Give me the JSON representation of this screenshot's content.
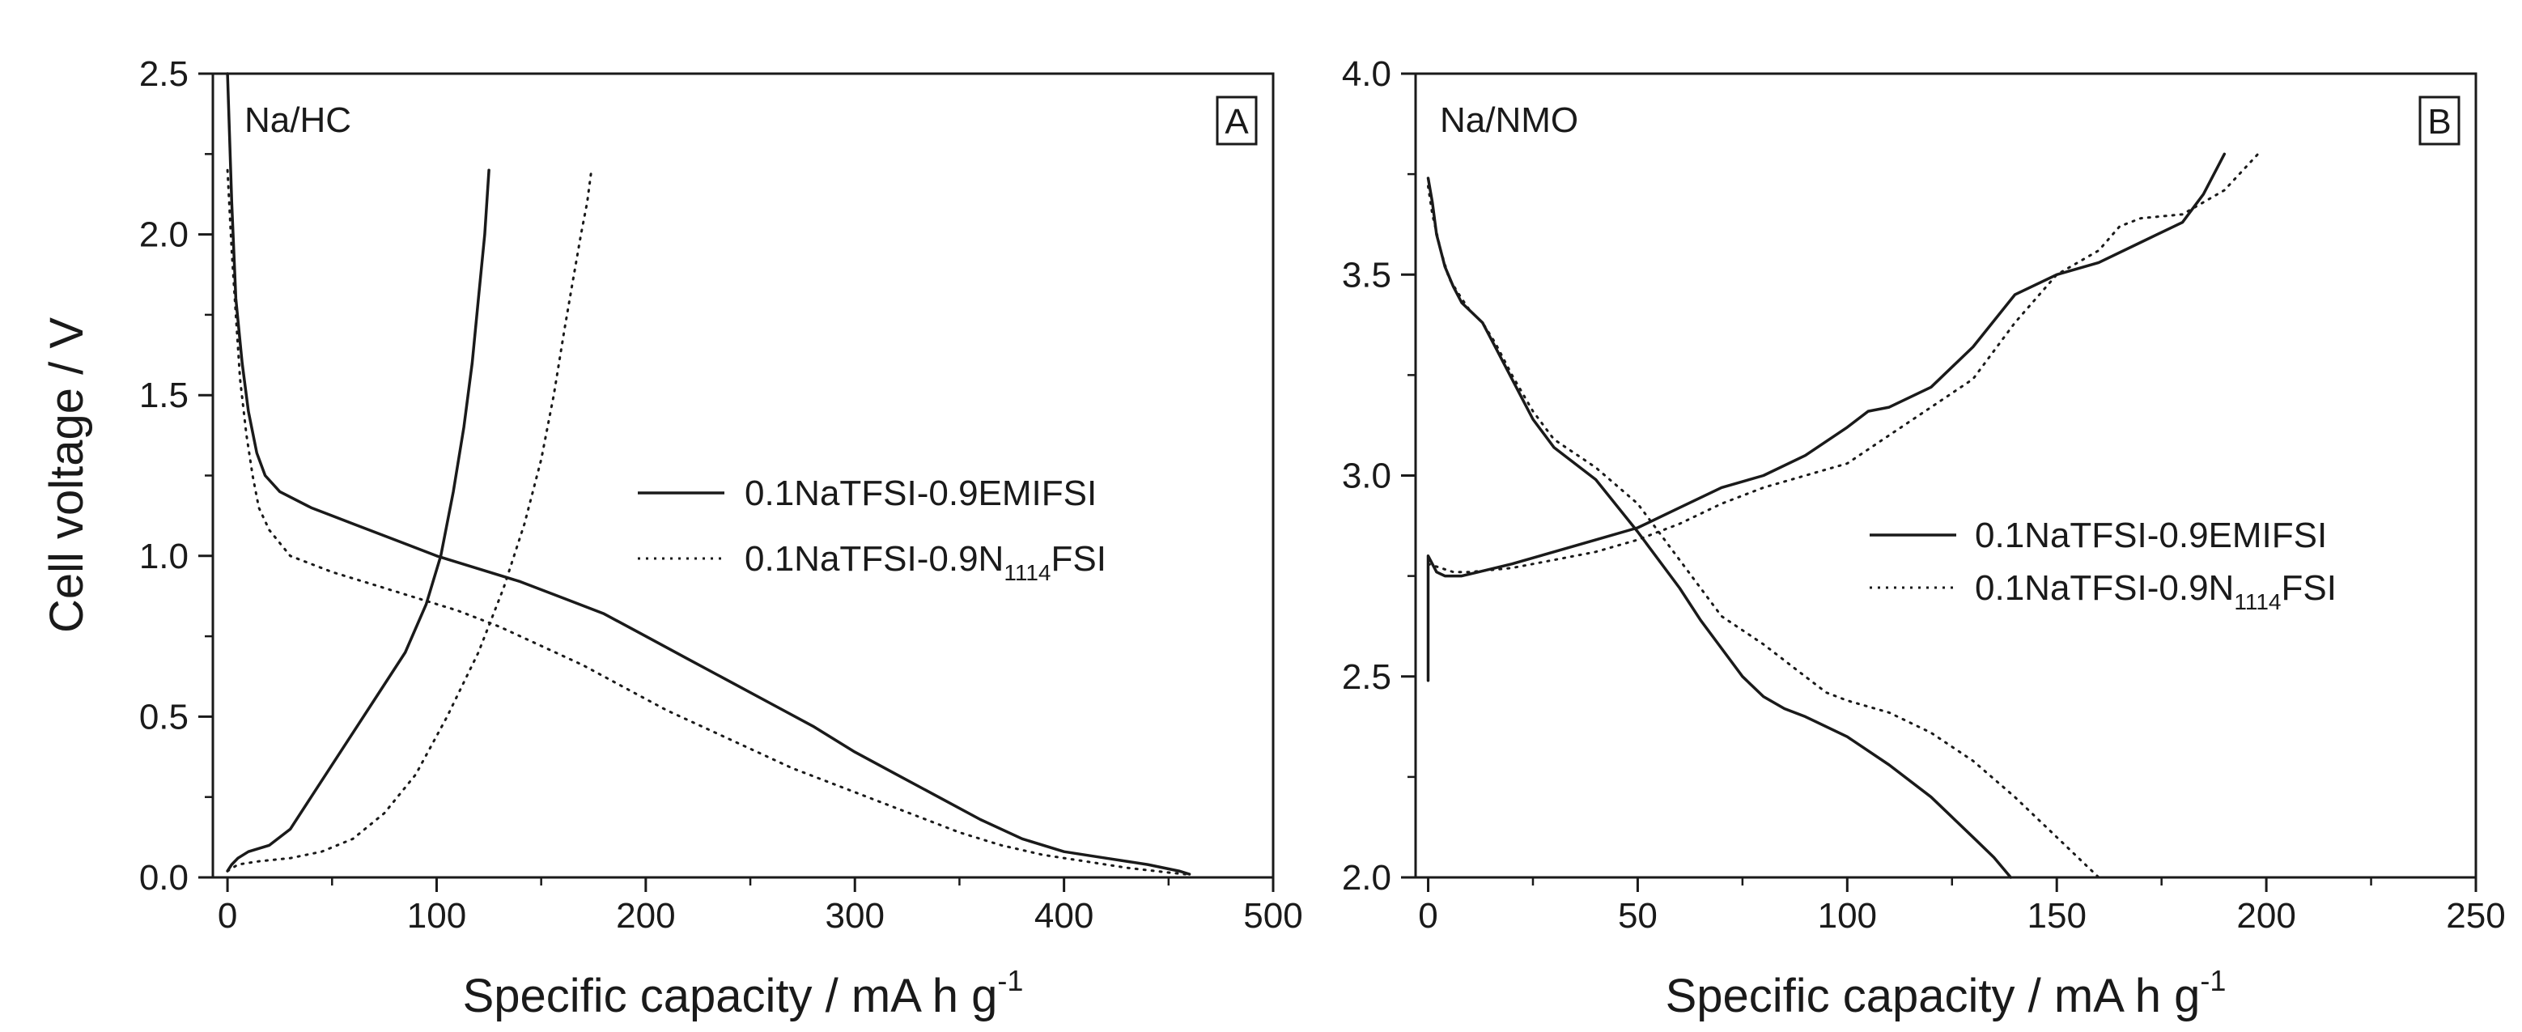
{
  "chart_data": [
    {
      "type": "line",
      "panel_label": "A",
      "annotation": "Na/HC",
      "xlabel": "Specific capacity / mA h g",
      "xlabel_sup": "-1",
      "ylabel": "Cell voltage / V",
      "xlim": [
        -7,
        500
      ],
      "ylim": [
        0,
        2.5
      ],
      "xticks": [
        0,
        100,
        200,
        300,
        400,
        500
      ],
      "yticks": [
        0.0,
        0.5,
        1.0,
        1.5,
        2.0,
        2.5
      ],
      "xtick_labels": [
        "0",
        "100",
        "200",
        "300",
        "400",
        "500"
      ],
      "ytick_labels": [
        "0.0",
        "0.5",
        "1.0",
        "1.5",
        "2.0",
        "2.5"
      ],
      "legend_position": "center-right",
      "series": [
        {
          "name": "0.1NaTFSI-0.9EMIFSI",
          "name_parts": [
            "0.1NaTFSI-0.9EMIFSI"
          ],
          "style": "solid",
          "curves": [
            {
              "x": [
                0,
                2,
                4,
                7,
                10,
                14,
                18,
                25,
                40,
                60,
                80,
                100,
                120,
                140,
                160,
                180,
                200,
                220,
                240,
                260,
                280,
                300,
                320,
                340,
                360,
                380,
                400,
                420,
                440,
                455,
                460
              ],
              "y": [
                2.5,
                2.1,
                1.8,
                1.6,
                1.45,
                1.32,
                1.25,
                1.2,
                1.15,
                1.1,
                1.05,
                1.0,
                0.96,
                0.92,
                0.87,
                0.82,
                0.75,
                0.68,
                0.61,
                0.54,
                0.47,
                0.39,
                0.32,
                0.25,
                0.18,
                0.12,
                0.08,
                0.06,
                0.04,
                0.02,
                0.01
              ]
            },
            {
              "x": [
                0,
                2,
                5,
                10,
                20,
                30,
                40,
                55,
                70,
                85,
                95,
                102,
                108,
                113,
                117,
                120,
                123,
                125
              ],
              "y": [
                0.02,
                0.04,
                0.06,
                0.08,
                0.1,
                0.15,
                0.25,
                0.4,
                0.55,
                0.7,
                0.85,
                1.0,
                1.2,
                1.4,
                1.6,
                1.8,
                2.0,
                2.2
              ]
            }
          ]
        },
        {
          "name": "0.1NaTFSI-0.9N1114FSI",
          "name_parts": [
            "0.1NaTFSI-0.9N",
            "1114",
            "FSI"
          ],
          "style": "dotted",
          "curves": [
            {
              "x": [
                0,
                2,
                4,
                6,
                9,
                12,
                15,
                20,
                30,
                50,
                70,
                90,
                110,
                130,
                150,
                170,
                190,
                210,
                230,
                250,
                270,
                290,
                310,
                330,
                350,
                370,
                390,
                410,
                430,
                450,
                458
              ],
              "y": [
                2.2,
                1.95,
                1.75,
                1.55,
                1.38,
                1.25,
                1.15,
                1.08,
                1.0,
                0.95,
                0.91,
                0.87,
                0.83,
                0.78,
                0.72,
                0.66,
                0.59,
                0.52,
                0.46,
                0.4,
                0.34,
                0.29,
                0.24,
                0.19,
                0.14,
                0.1,
                0.07,
                0.05,
                0.03,
                0.015,
                0.01
              ]
            },
            {
              "x": [
                0,
                5,
                15,
                30,
                45,
                60,
                75,
                90,
                105,
                120,
                132,
                142,
                150,
                156,
                161,
                165,
                169,
                172,
                174
              ],
              "y": [
                0.02,
                0.04,
                0.05,
                0.06,
                0.08,
                0.12,
                0.2,
                0.32,
                0.5,
                0.7,
                0.9,
                1.1,
                1.3,
                1.5,
                1.7,
                1.85,
                2.0,
                2.1,
                2.2
              ]
            }
          ]
        }
      ]
    },
    {
      "type": "line",
      "panel_label": "B",
      "annotation": "Na/NMO",
      "xlabel": "Specific capacity / mA h g",
      "xlabel_sup": "-1",
      "ylabel": "",
      "xlim": [
        -3,
        250
      ],
      "ylim": [
        2.0,
        4.0
      ],
      "xticks": [
        0,
        50,
        100,
        150,
        200,
        250
      ],
      "yticks": [
        2.0,
        2.5,
        3.0,
        3.5,
        4.0
      ],
      "xtick_labels": [
        "0",
        "50",
        "100",
        "150",
        "200",
        "250"
      ],
      "ytick_labels": [
        "2.0",
        "2.5",
        "3.0",
        "3.5",
        "4.0"
      ],
      "legend_position": "center-right",
      "series": [
        {
          "name": "0.1NaTFSI-0.9EMIFSI",
          "name_parts": [
            "0.1NaTFSI-0.9EMIFSI"
          ],
          "style": "solid",
          "curves": [
            {
              "x": [
                0,
                0,
                1,
                2,
                4,
                8,
                12,
                20,
                30,
                40,
                50,
                60,
                70,
                80,
                90,
                100,
                105,
                110,
                120,
                130,
                140,
                150,
                160,
                170,
                180,
                185,
                190
              ],
              "y": [
                2.49,
                2.8,
                2.78,
                2.76,
                2.75,
                2.75,
                2.76,
                2.78,
                2.81,
                2.84,
                2.87,
                2.92,
                2.97,
                3.0,
                3.05,
                3.12,
                3.16,
                3.17,
                3.22,
                3.32,
                3.45,
                3.5,
                3.53,
                3.58,
                3.63,
                3.7,
                3.8
              ]
            },
            {
              "x": [
                0,
                1,
                2,
                4,
                6,
                8,
                10,
                13,
                16,
                20,
                25,
                30,
                40,
                50,
                60,
                65,
                70,
                75,
                80,
                85,
                90,
                100,
                110,
                120,
                130,
                135,
                139
              ],
              "y": [
                3.74,
                3.68,
                3.6,
                3.52,
                3.47,
                3.43,
                3.41,
                3.38,
                3.32,
                3.24,
                3.14,
                3.07,
                2.99,
                2.86,
                2.72,
                2.64,
                2.57,
                2.5,
                2.45,
                2.42,
                2.4,
                2.35,
                2.28,
                2.2,
                2.1,
                2.05,
                2.0
              ]
            }
          ]
        },
        {
          "name": "0.1NaTFSI-0.9N1114FSI",
          "name_parts": [
            "0.1NaTFSI-0.9N",
            "1114",
            "FSI"
          ],
          "style": "dotted",
          "curves": [
            {
              "x": [
                0,
                3,
                6,
                10,
                20,
                30,
                40,
                50,
                60,
                70,
                80,
                90,
                100,
                110,
                120,
                130,
                140,
                150,
                160,
                165,
                170,
                180,
                190,
                198
              ],
              "y": [
                2.78,
                2.77,
                2.76,
                2.76,
                2.77,
                2.79,
                2.81,
                2.84,
                2.88,
                2.93,
                2.97,
                3.0,
                3.03,
                3.1,
                3.17,
                3.24,
                3.38,
                3.5,
                3.56,
                3.62,
                3.64,
                3.65,
                3.71,
                3.8
              ]
            },
            {
              "x": [
                0,
                1,
                3,
                5,
                8,
                10,
                13,
                16,
                20,
                25,
                30,
                40,
                50,
                60,
                70,
                80,
                90,
                95,
                100,
                110,
                120,
                130,
                140,
                150,
                160
              ],
              "y": [
                3.72,
                3.65,
                3.56,
                3.49,
                3.44,
                3.41,
                3.38,
                3.33,
                3.25,
                3.16,
                3.09,
                3.02,
                2.93,
                2.79,
                2.65,
                2.58,
                2.5,
                2.46,
                2.44,
                2.41,
                2.36,
                2.29,
                2.2,
                2.1,
                2.0
              ]
            }
          ]
        }
      ]
    }
  ]
}
